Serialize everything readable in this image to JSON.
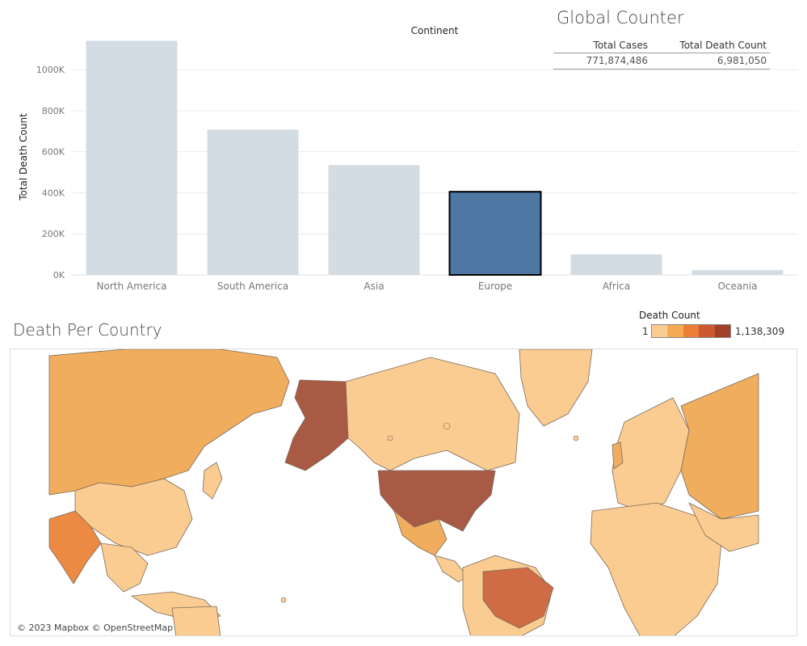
{
  "chart_data": {
    "type": "bar",
    "title": "",
    "xlabel": "Continent",
    "ylabel": "Total Death Count",
    "categories": [
      "North America",
      "South America",
      "Asia",
      "Europe",
      "Africa",
      "Oceania"
    ],
    "values": [
      1140000,
      707000,
      535000,
      405000,
      100000,
      23000
    ],
    "highlighted": "Europe",
    "ylim": [
      0,
      1150000
    ],
    "yticks": [
      0,
      200000,
      400000,
      600000,
      800000,
      1000000
    ],
    "ytick_labels": [
      "0K",
      "200K",
      "400K",
      "600K",
      "800K",
      "1000K"
    ],
    "grid": true
  },
  "counter": {
    "title": "Global Counter",
    "headers": [
      "Total Cases",
      "Total Death Count"
    ],
    "values": [
      "771,874,486",
      "6,981,050"
    ]
  },
  "map": {
    "title": "Death Per Country",
    "legend_title": "Death Count",
    "legend_min": "1",
    "legend_max": "1,138,309",
    "attribution": "© 2023 Mapbox © OpenStreetMap"
  },
  "colors": {
    "bar_default": "#d4dce3",
    "bar_highlight": "#4e77a3",
    "legend": [
      "#fbcc91",
      "#f4a952",
      "#eb7d36",
      "#cc5a30",
      "#a23f2a"
    ],
    "land_default": "#fbcc91",
    "land_orange": "#f0ad5e",
    "land_dark": "#a95a45",
    "land_india": "#ec8a44",
    "land_brazil": "#cf6c45"
  }
}
